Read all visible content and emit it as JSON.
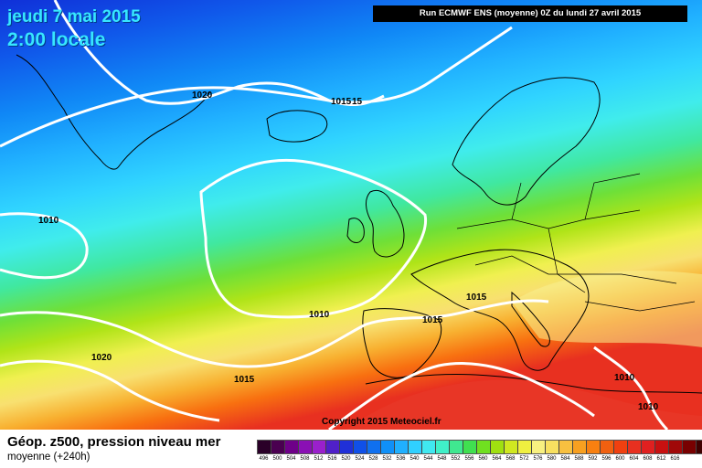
{
  "header": {
    "date": "jeudi 7 mai 2015",
    "time": "2:00 locale",
    "run": "Run ECMWF ENS (moyenne) 0Z du lundi 27 avril 2015"
  },
  "copyright": "Copyright 2015 Meteociel.fr",
  "isobars": {
    "label_1020": "1020",
    "label_1015_a": "1015",
    "label_1015_b": "15",
    "label_1010_w": "1010",
    "label_1010_c": "1010",
    "label_1020_sw": "1020",
    "label_1015_s": "1015",
    "label_1015_fr": "1015",
    "label_1015_it": "1015",
    "label_1010_e1": "1010",
    "label_1010_e2": "1010"
  },
  "legend": {
    "title": "Géop. z500, pression niveau mer",
    "subtitle": "moyenne  (+240h)",
    "colors": [
      "#2a0028",
      "#4a0050",
      "#6e0088",
      "#8a10b4",
      "#9a20cc",
      "#5020c8",
      "#2030d8",
      "#1050e8",
      "#1070f0",
      "#1090f8",
      "#20b0ff",
      "#30d0ff",
      "#40e8f0",
      "#40f0c8",
      "#40e890",
      "#40e050",
      "#70e020",
      "#a0e010",
      "#d0e820",
      "#f0f040",
      "#f8f080",
      "#f8e060",
      "#f8c040",
      "#f8a020",
      "#f88010",
      "#f06010",
      "#f04010",
      "#e83020",
      "#e02020",
      "#c81010",
      "#a00808",
      "#780000",
      "#400000"
    ],
    "values": [
      "496",
      "500",
      "504",
      "508",
      "512",
      "516",
      "520",
      "524",
      "528",
      "532",
      "536",
      "540",
      "544",
      "548",
      "552",
      "556",
      "560",
      "564",
      "568",
      "572",
      "576",
      "580",
      "584",
      "588",
      "592",
      "596",
      "600",
      "604",
      "608",
      "612",
      "616"
    ]
  }
}
